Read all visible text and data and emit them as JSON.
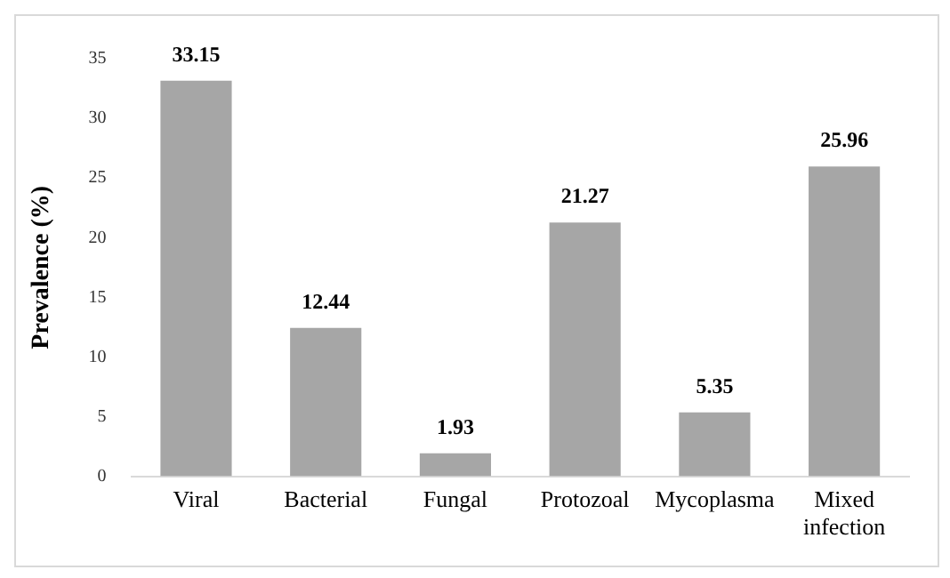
{
  "chart_data": {
    "type": "bar",
    "ylabel": "Prevalence (%)",
    "categories": [
      "Viral",
      "Bacterial",
      "Fungal",
      "Protozoal",
      "Mycoplasma",
      "Mixed infection"
    ],
    "values": [
      33.15,
      12.44,
      1.93,
      21.27,
      5.35,
      25.96
    ],
    "data_labels": true,
    "color": "#a6a6a6",
    "ylim": [
      0,
      35
    ],
    "yticks": [
      0,
      5,
      10,
      15,
      20,
      25,
      30,
      35
    ],
    "grid": false,
    "legend": false
  }
}
